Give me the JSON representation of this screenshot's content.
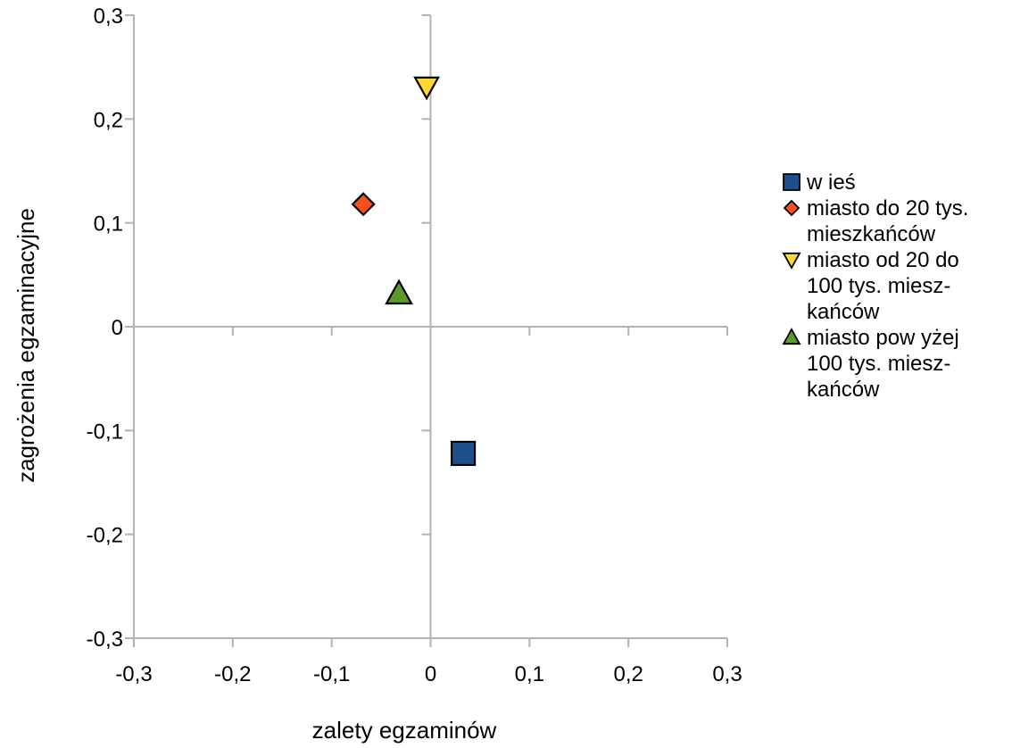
{
  "chart_data": {
    "type": "scatter",
    "title": "",
    "xlabel": "zalety egzaminów",
    "ylabel": "zagrożenia egzaminacyjne",
    "xlim": [
      -0.3,
      0.3
    ],
    "ylim": [
      -0.3,
      0.3
    ],
    "x_ticks": [
      "-0,3",
      "-0,2",
      "-0,1",
      "0",
      "0,1",
      "0,2",
      "0,3"
    ],
    "y_ticks": [
      "0,3",
      "0,2",
      "0,1",
      "0",
      "-0,1",
      "-0,2",
      "-0,3"
    ],
    "grid": false,
    "legend_position": "right",
    "series": [
      {
        "name": "w ieś",
        "marker": "square",
        "color": "#1f4e8c",
        "x": 0.033,
        "y": -0.122
      },
      {
        "name": "miasto do 20 tys.\nmieszkańców",
        "marker": "diamond",
        "color": "#f4511e",
        "x": -0.068,
        "y": 0.118
      },
      {
        "name": "miasto od 20 do\n100 tys. miesz-\nkańców",
        "marker": "triangle-down",
        "color": "#fdd835",
        "x": -0.004,
        "y": 0.231
      },
      {
        "name": "miasto pow yżej\n100 tys. miesz-\nkańców",
        "marker": "triangle-up",
        "color": "#5b9a2a",
        "x": -0.032,
        "y": 0.032
      }
    ]
  }
}
